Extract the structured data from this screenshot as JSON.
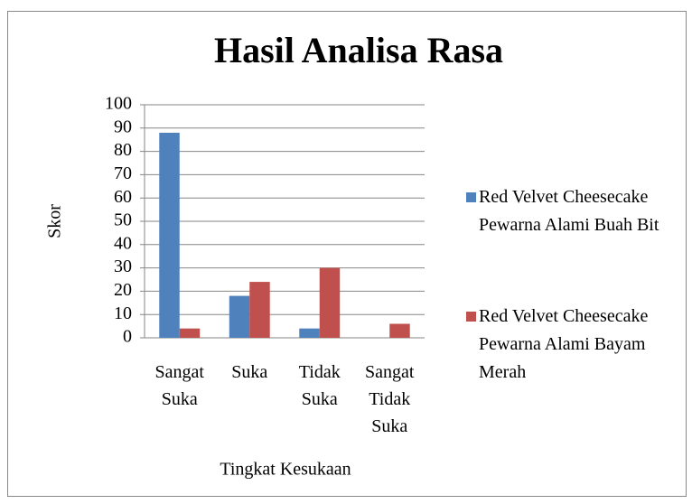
{
  "chart_data": {
    "type": "bar",
    "title": "Hasil Analisa Rasa",
    "x_label": "Tingkat Kesukaan",
    "y_label": "Skor",
    "categories": [
      "Sangat Suka",
      "Suka",
      "Tidak Suka",
      "Sangat Tidak Suka"
    ],
    "series": [
      {
        "name": "Red Velvet Cheesecake Pewarna Alami Buah Bit",
        "color": "#4f81bd",
        "values": [
          88,
          18,
          4,
          0
        ]
      },
      {
        "name": "Red Velvet Cheesecake Pewarna Alami Bayam Merah",
        "color": "#c0504d",
        "values": [
          4,
          24,
          30,
          6
        ]
      }
    ],
    "ylim": [
      0,
      100
    ],
    "yticks": [
      0,
      10,
      20,
      30,
      40,
      50,
      60,
      70,
      80,
      90,
      100
    ],
    "grid": true,
    "legend": "right"
  }
}
